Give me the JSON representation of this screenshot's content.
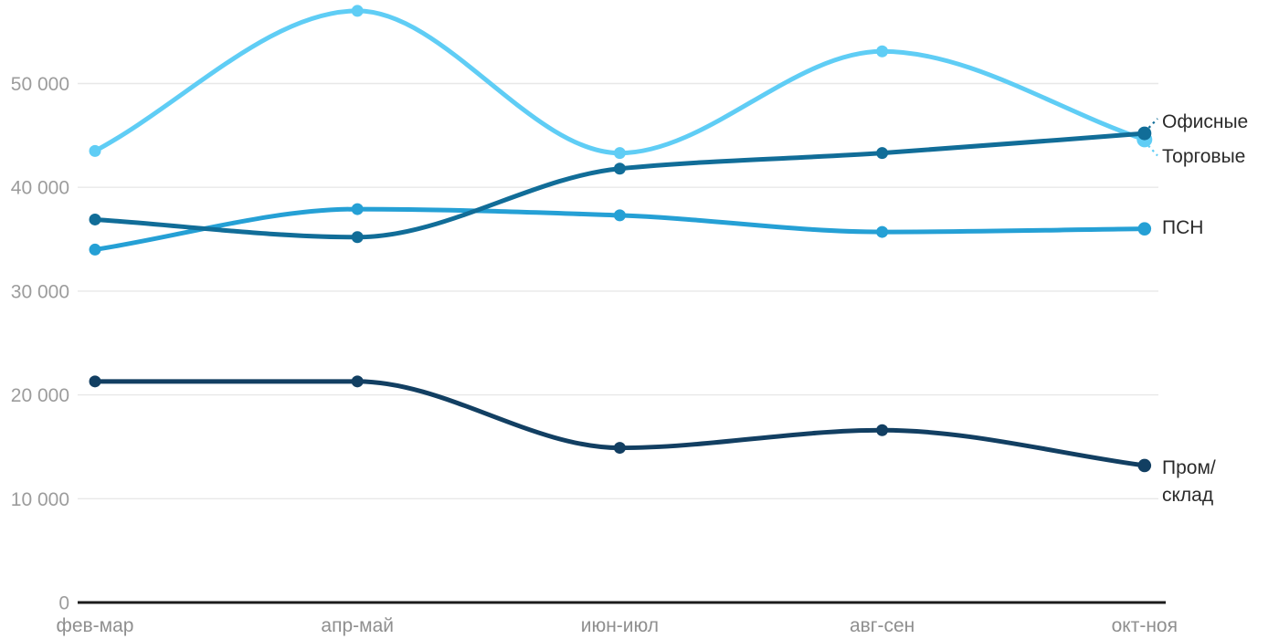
{
  "chart_data": {
    "type": "line",
    "title": "",
    "xlabel": "",
    "ylabel": "",
    "categories": [
      "фев-мар",
      "апр-май",
      "июн-июл",
      "авг-сен",
      "окт-ноя"
    ],
    "series": [
      {
        "name": "Офисные",
        "color": "#116d98",
        "values": [
          36900,
          35200,
          41800,
          43300,
          45200
        ]
      },
      {
        "name": "Торговые",
        "color": "#5fcdf5",
        "values": [
          43500,
          57000,
          43300,
          53100,
          44600
        ]
      },
      {
        "name": "ПСН",
        "color": "#25a0d5",
        "values": [
          34000,
          37900,
          37300,
          35700,
          36000
        ]
      },
      {
        "name": "Пром/склад",
        "color": "#123f62",
        "values": [
          21300,
          21300,
          14900,
          16600,
          13200
        ]
      }
    ],
    "yticks": [
      {
        "value": 0,
        "label": "0"
      },
      {
        "value": 10000,
        "label": "10 000"
      },
      {
        "value": 20000,
        "label": "20 000"
      },
      {
        "value": 30000,
        "label": "30 000"
      },
      {
        "value": 40000,
        "label": "40 000"
      },
      {
        "value": 50000,
        "label": "50 000"
      }
    ],
    "ylim": [
      0,
      57500
    ],
    "grid": "horizontal",
    "legend_position": "right-inline",
    "curve": "monotone",
    "colors": {
      "grid": "#e8e8e8",
      "axis": "#1c1c1c",
      "ytick_text": "#9c9c9c",
      "xtick_text": "#8f8f8f",
      "series_label_text": "#2b2b2b"
    }
  }
}
